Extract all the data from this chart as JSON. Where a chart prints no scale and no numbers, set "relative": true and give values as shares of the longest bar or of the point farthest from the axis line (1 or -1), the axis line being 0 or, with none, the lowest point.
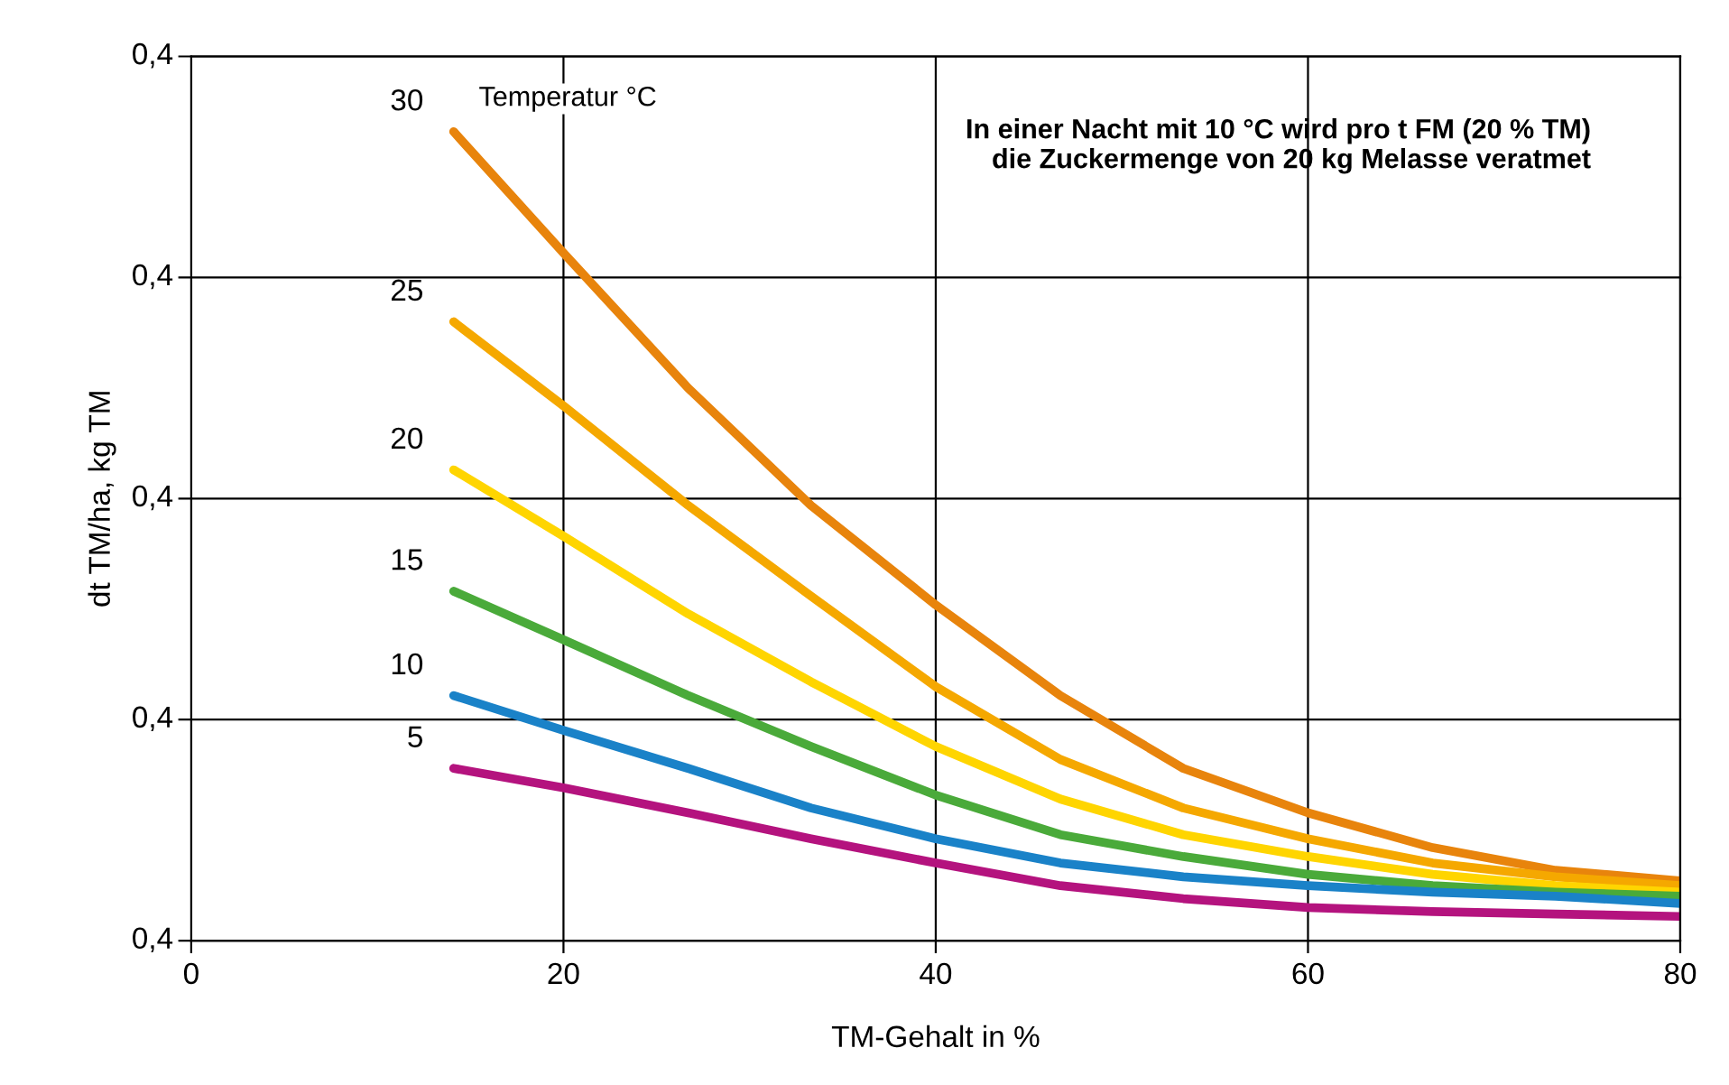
{
  "chart_data": {
    "type": "line",
    "xlabel": "TM-Gehalt in %",
    "ylabel": "dt TM/ha, kg TM",
    "legend_title": "Temperatur °C",
    "annotations": [
      "In einer Nacht mit 10 °C wird pro t FM (20 % TM)\ndie Zuckermenge von 20 kg Melasse veratmet",
      "0,4",
      "0,4",
      "0,4",
      "0,4",
      "0,4"
    ],
    "relative": true,
    "x": [
      14.1,
      20,
      26.7,
      33.3,
      40,
      46.7,
      53.3,
      60,
      66.7,
      73.3,
      80
    ],
    "series": [
      {
        "name": "30",
        "color": "#e8840c",
        "values": [
          1,
          0.85,
          0.683,
          0.538,
          0.415,
          0.303,
          0.213,
          0.158,
          0.115,
          0.087,
          0.074
        ]
      },
      {
        "name": "25",
        "color": "#f5a800",
        "values": [
          0.765,
          0.661,
          0.538,
          0.426,
          0.314,
          0.224,
          0.164,
          0.126,
          0.096,
          0.079,
          0.068
        ]
      },
      {
        "name": "20",
        "color": "#ffd500",
        "values": [
          0.582,
          0.5,
          0.404,
          0.32,
          0.24,
          0.175,
          0.131,
          0.104,
          0.082,
          0.068,
          0.06
        ]
      },
      {
        "name": "15",
        "color": "#4aaa3a",
        "values": [
          0.432,
          0.372,
          0.303,
          0.24,
          0.18,
          0.131,
          0.104,
          0.082,
          0.068,
          0.06,
          0.055
        ]
      },
      {
        "name": "10",
        "color": "#1a82c8",
        "values": [
          0.303,
          0.26,
          0.213,
          0.164,
          0.126,
          0.096,
          0.079,
          0.068,
          0.06,
          0.055,
          0.046
        ]
      },
      {
        "name": "5",
        "color": "#b4137e",
        "values": [
          0.213,
          0.189,
          0.158,
          0.126,
          0.096,
          0.068,
          0.052,
          0.041,
          0.036,
          0.033,
          0.03
        ]
      }
    ],
    "xlim": [
      0,
      80
    ],
    "xticks": [
      0,
      20,
      40,
      60,
      80
    ],
    "grid": true,
    "marker": "none",
    "line_style": "solid",
    "legend": false
  }
}
